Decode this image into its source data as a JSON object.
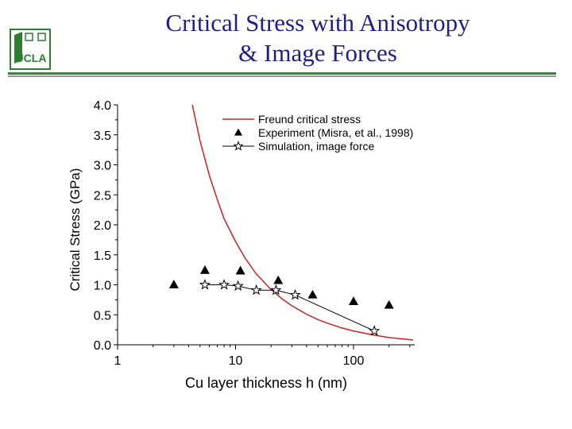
{
  "slide": {
    "title_line1": "Critical Stress with Anisotropy",
    "title_line2": "& Image Forces",
    "logo_text": "UCLA",
    "colors": {
      "title": "#1e1e8c",
      "rule": "#2e8b2e",
      "rule_shadow": "#9a9a9a",
      "logo": "#2e7d32"
    }
  },
  "chart_data": {
    "type": "scatter",
    "xlabel": "Cu layer thickness h (nm)",
    "ylabel": "Critical Stress (GPa)",
    "xscale": "log",
    "xlim": [
      1,
      330
    ],
    "ylim": [
      0,
      4.0
    ],
    "x_ticks": [
      1,
      10,
      100
    ],
    "x_tick_labels": [
      "1",
      "10",
      "100"
    ],
    "y_ticks": [
      0,
      0.5,
      1.0,
      1.5,
      2.0,
      2.5,
      3.0,
      3.5,
      4.0
    ],
    "y_tick_labels": [
      "0.0",
      "0.5",
      "1.0",
      "1.5",
      "2.0",
      "2.5",
      "3.0",
      "3.5",
      "4.0"
    ],
    "legend_position": "top-right",
    "grid": false,
    "series": [
      {
        "name": "Freund critical stress",
        "style": "line",
        "color": "#cc2222",
        "x": [
          4.3,
          5,
          6,
          7,
          8,
          10,
          12,
          15,
          20,
          25,
          30,
          40,
          50,
          60,
          80,
          100,
          150,
          200,
          250,
          320
        ],
        "y": [
          4.0,
          3.4,
          2.82,
          2.42,
          2.1,
          1.72,
          1.45,
          1.18,
          0.92,
          0.76,
          0.65,
          0.51,
          0.42,
          0.36,
          0.28,
          0.23,
          0.16,
          0.12,
          0.1,
          0.08
        ]
      },
      {
        "name": "Experiment (Misra, et al., 1998)",
        "style": "triangle",
        "color": "#000000",
        "x": [
          3,
          5.5,
          11,
          23,
          45,
          100,
          200
        ],
        "y": [
          1.0,
          1.24,
          1.23,
          1.07,
          0.83,
          0.72,
          0.66
        ]
      },
      {
        "name": "Simulation, image force",
        "style": "star-line",
        "color": "#000000",
        "x": [
          5.5,
          8,
          10.5,
          15,
          22,
          32,
          150
        ],
        "y": [
          1.0,
          1.0,
          0.98,
          0.91,
          0.91,
          0.83,
          0.23
        ]
      }
    ]
  }
}
